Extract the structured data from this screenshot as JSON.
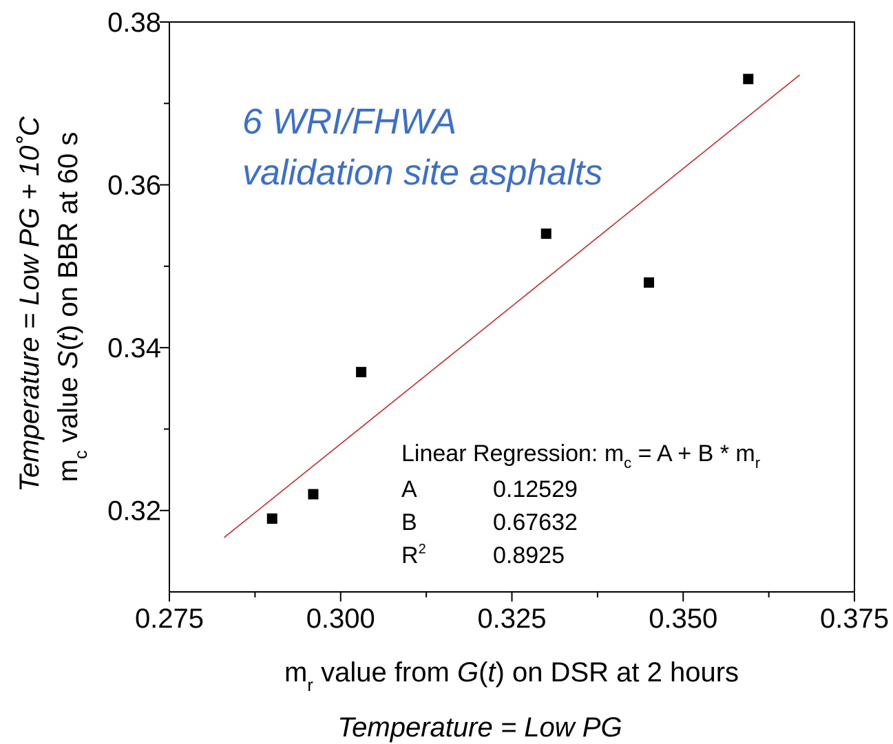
{
  "chart_data": {
    "type": "scatter",
    "x": [
      0.29,
      0.296,
      0.303,
      0.33,
      0.345,
      0.3595
    ],
    "y": [
      0.319,
      0.322,
      0.337,
      0.354,
      0.348,
      0.373
    ],
    "xlim": [
      0.275,
      0.375
    ],
    "ylim": [
      0.31,
      0.38
    ],
    "x_ticks": [
      "0.275",
      "0.300",
      "0.325",
      "0.350",
      "0.375"
    ],
    "y_ticks": [
      "0.32",
      "0.34",
      "0.36",
      "0.38"
    ],
    "x_tick_values": [
      0.275,
      0.3,
      0.325,
      0.35,
      0.375
    ],
    "y_tick_values": [
      0.32,
      0.34,
      0.36,
      0.38
    ],
    "x_minor_ticks": [
      0.2875,
      0.3125,
      0.3375,
      0.3625
    ],
    "y_minor_ticks": [
      0.33,
      0.35,
      0.37
    ],
    "fit_line": {
      "x_start": 0.283,
      "x_end": 0.367,
      "intercept": 0.12529,
      "slope": 0.67632,
      "color": "#e8141e"
    },
    "marker_color": "#000000",
    "annotation": {
      "line1": "6 WRI/FHWA",
      "line2": "validation site asphalts",
      "color": "#3a6fd0"
    },
    "regression": {
      "title_prefix": "Linear Regression: m",
      "title_sub_c": "c",
      "title_mid": " = A + B * m",
      "title_sub_r": "r",
      "rows": [
        {
          "label": "A",
          "sup": "",
          "value": "0.12529"
        },
        {
          "label": "B",
          "sup": "",
          "value": "0.67632"
        },
        {
          "label": "R",
          "sup": "2",
          "value": "0.8925"
        }
      ]
    },
    "xlabel": {
      "m": "m",
      "sub": "r",
      "part1": " value from ",
      "G": "G",
      "open": "(",
      "t": "t",
      "part2": ") on DSR at 2 hours"
    },
    "xlabel2": "Temperature = Low PG",
    "ylabel": {
      "m": "m",
      "sub": "c",
      "part1": " value ",
      "S": "S",
      "open": "(",
      "t": "t",
      "part2": ") on BBR at 60 s"
    },
    "ylabel2": "Temperature = Low PG + 10˚C"
  }
}
